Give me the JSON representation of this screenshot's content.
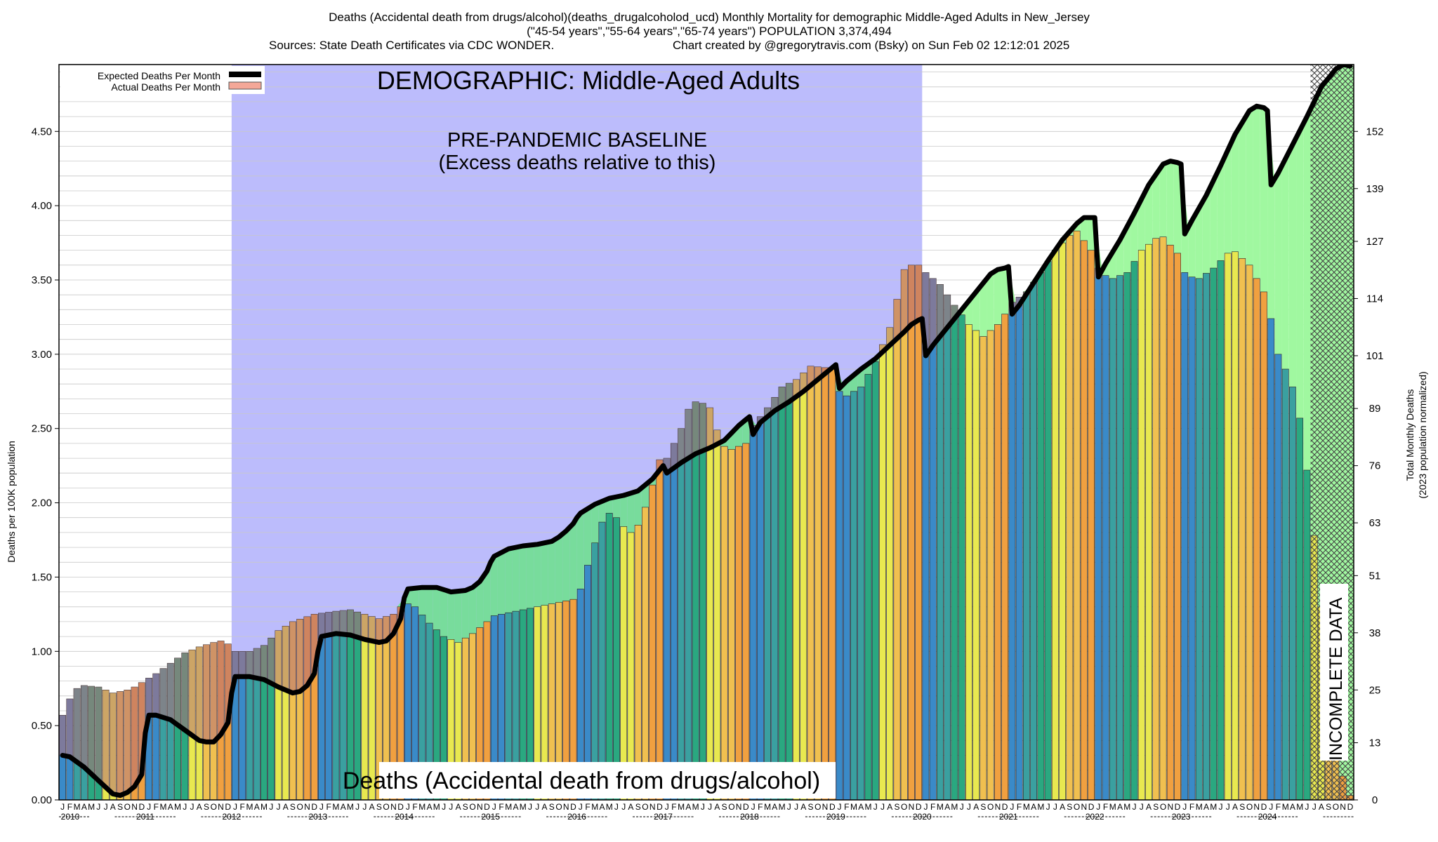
{
  "chart_data": {
    "type": "bar",
    "title_lines": [
      "Deaths (Accidental death from drugs/alcohol)(deaths_drugalcoholod_ucd) Monthly Mortality for demographic Middle-Aged Adults in New_Jersey",
      "(\"45-54 years\",\"55-64 years\",\"65-74 years\") POPULATION 3,374,494"
    ],
    "sources": "Sources: State Death Certificates via CDC WONDER.",
    "credit": "Chart created by @gregorytravis.com (Bsky) on Sun Feb 02 12:12:01 2025",
    "demographic_label": "DEMOGRAPHIC: Middle-Aged Adults",
    "baseline_label_1": "PRE-PANDEMIC BASELINE",
    "baseline_label_2": "(Excess deaths relative to this)",
    "bottom_label": "Deaths (Accidental death from drugs/alcohol)",
    "incomplete_label": "INCOMPLETE DATA",
    "ylabel_left": "Deaths per 100K population",
    "ylabel_right_1": "Total Monthly Deaths",
    "ylabel_right_2": "(2023 population normalized)",
    "legend": [
      "Expected Deaths Per Month",
      "Actual Deaths Per Month"
    ],
    "ylim": [
      0,
      4.95
    ],
    "left_ticks": [
      "0.00",
      "0.50",
      "1.00",
      "1.50",
      "2.00",
      "2.50",
      "3.00",
      "3.50",
      "4.00",
      "4.50"
    ],
    "right_ticks": [
      "0",
      "13",
      "25",
      "38",
      "51",
      "63",
      "76",
      "89",
      "101",
      "114",
      "127",
      "139",
      "152"
    ],
    "month_letters": [
      "J",
      "F",
      "M",
      "A",
      "M",
      "J",
      "J",
      "A",
      "S",
      "O",
      "N",
      "D"
    ],
    "years": [
      "2010",
      "2011",
      "2012",
      "2013",
      "2014",
      "2015",
      "2016",
      "2017",
      "2018",
      "2019",
      "2020",
      "2021",
      "2022",
      "2023",
      "2024"
    ],
    "baseline_years": [
      "2012",
      "2013",
      "2014",
      "2015",
      "2016",
      "2017",
      "2018",
      "2019"
    ],
    "incomplete_from": "2024-07",
    "actual_anchors": [
      [
        "2010-01",
        0.57
      ],
      [
        "2010-02",
        0.68
      ],
      [
        "2010-03",
        0.75
      ],
      [
        "2010-04",
        0.77
      ],
      [
        "2010-06",
        0.76
      ],
      [
        "2010-07",
        0.74
      ],
      [
        "2010-08",
        0.72
      ],
      [
        "2010-10",
        0.74
      ],
      [
        "2010-11",
        0.76
      ],
      [
        "2010-12",
        0.79
      ],
      [
        "2011-02",
        0.85
      ],
      [
        "2011-04",
        0.92
      ],
      [
        "2011-06",
        0.99
      ],
      [
        "2011-08",
        1.03
      ],
      [
        "2011-10",
        1.06
      ],
      [
        "2011-11",
        1.07
      ],
      [
        "2011-12",
        1.05
      ],
      [
        "2012-01",
        1.0
      ],
      [
        "2012-03",
        1.0
      ],
      [
        "2012-05",
        1.04
      ],
      [
        "2012-07",
        1.14
      ],
      [
        "2012-09",
        1.2
      ],
      [
        "2012-12",
        1.25
      ],
      [
        "2013-03",
        1.27
      ],
      [
        "2013-05",
        1.28
      ],
      [
        "2013-07",
        1.25
      ],
      [
        "2013-09",
        1.22
      ],
      [
        "2013-11",
        1.25
      ],
      [
        "2013-12",
        1.3
      ],
      [
        "2014-01",
        1.32
      ],
      [
        "2014-02",
        1.3
      ],
      [
        "2014-04",
        1.19
      ],
      [
        "2014-06",
        1.1
      ],
      [
        "2014-08",
        1.06
      ],
      [
        "2014-10",
        1.12
      ],
      [
        "2014-12",
        1.2
      ],
      [
        "2015-01",
        1.24
      ],
      [
        "2015-04",
        1.27
      ],
      [
        "2015-07",
        1.3
      ],
      [
        "2015-10",
        1.33
      ],
      [
        "2015-12",
        1.35
      ],
      [
        "2016-01",
        1.42
      ],
      [
        "2016-02",
        1.58
      ],
      [
        "2016-03",
        1.73
      ],
      [
        "2016-04",
        1.87
      ],
      [
        "2016-05",
        1.93
      ],
      [
        "2016-06",
        1.9
      ],
      [
        "2016-07",
        1.84
      ],
      [
        "2016-08",
        1.8
      ],
      [
        "2016-09",
        1.85
      ],
      [
        "2016-10",
        1.97
      ],
      [
        "2016-11",
        2.12
      ],
      [
        "2016-12",
        2.29
      ],
      [
        "2017-01",
        2.3
      ],
      [
        "2017-03",
        2.5
      ],
      [
        "2017-04",
        2.63
      ],
      [
        "2017-05",
        2.68
      ],
      [
        "2017-06",
        2.67
      ],
      [
        "2017-07",
        2.64
      ],
      [
        "2017-08",
        2.49
      ],
      [
        "2017-09",
        2.38
      ],
      [
        "2017-10",
        2.36
      ],
      [
        "2017-12",
        2.4
      ],
      [
        "2018-01",
        2.52
      ],
      [
        "2018-03",
        2.64
      ],
      [
        "2018-05",
        2.78
      ],
      [
        "2018-07",
        2.83
      ],
      [
        "2018-09",
        2.92
      ],
      [
        "2018-11",
        2.91
      ],
      [
        "2018-12",
        2.9
      ],
      [
        "2019-01",
        2.75
      ],
      [
        "2019-02",
        2.72
      ],
      [
        "2019-04",
        2.78
      ],
      [
        "2019-06",
        2.95
      ],
      [
        "2019-08",
        3.18
      ],
      [
        "2019-09",
        3.37
      ],
      [
        "2019-10",
        3.57
      ],
      [
        "2019-11",
        3.6
      ],
      [
        "2019-12",
        3.6
      ],
      [
        "2020-01",
        3.55
      ],
      [
        "2020-03",
        3.47
      ],
      [
        "2020-05",
        3.33
      ],
      [
        "2020-07",
        3.2
      ],
      [
        "2020-09",
        3.12
      ],
      [
        "2020-11",
        3.2
      ],
      [
        "2020-12",
        3.27
      ],
      [
        "2021-01",
        3.35
      ],
      [
        "2021-03",
        3.42
      ],
      [
        "2021-05",
        3.55
      ],
      [
        "2021-07",
        3.7
      ],
      [
        "2021-09",
        3.8
      ],
      [
        "2021-10",
        3.83
      ],
      [
        "2021-12",
        3.7
      ],
      [
        "2022-01",
        3.58
      ],
      [
        "2022-02",
        3.53
      ],
      [
        "2022-03",
        3.51
      ],
      [
        "2022-05",
        3.55
      ],
      [
        "2022-07",
        3.7
      ],
      [
        "2022-09",
        3.78
      ],
      [
        "2022-10",
        3.79
      ],
      [
        "2022-12",
        3.68
      ],
      [
        "2023-01",
        3.55
      ],
      [
        "2023-02",
        3.52
      ],
      [
        "2023-03",
        3.51
      ],
      [
        "2023-05",
        3.58
      ],
      [
        "2023-07",
        3.68
      ],
      [
        "2023-08",
        3.69
      ],
      [
        "2023-10",
        3.6
      ],
      [
        "2023-12",
        3.42
      ],
      [
        "2024-01",
        3.24
      ],
      [
        "2024-02",
        3.0
      ],
      [
        "2024-03",
        2.9
      ],
      [
        "2024-04",
        2.78
      ],
      [
        "2024-05",
        2.57
      ],
      [
        "2024-06",
        2.22
      ],
      [
        "2024-07",
        1.78
      ],
      [
        "2024-08",
        1.3
      ],
      [
        "2024-09",
        0.8
      ],
      [
        "2024-10",
        0.45
      ],
      [
        "2024-11",
        0.16
      ],
      [
        "2024-12",
        0.03
      ]
    ],
    "expected_anchors": [
      [
        "2010-01",
        0.3
      ],
      [
        "2010-02",
        0.29
      ],
      [
        "2010-04",
        0.22
      ],
      [
        "2010-06",
        0.13
      ],
      [
        "2010-08",
        0.04
      ],
      [
        "2010-09",
        0.03
      ],
      [
        "2010-10",
        0.05
      ],
      [
        "2010-11",
        0.09
      ],
      [
        "2010-12",
        0.17
      ],
      [
        "2010-12.5",
        0.45
      ],
      [
        "2011-01",
        0.57
      ],
      [
        "2011-02",
        0.57
      ],
      [
        "2011-04",
        0.54
      ],
      [
        "2011-06",
        0.47
      ],
      [
        "2011-08",
        0.4
      ],
      [
        "2011-09",
        0.39
      ],
      [
        "2011-10",
        0.39
      ],
      [
        "2011-11",
        0.44
      ],
      [
        "2011-12",
        0.52
      ],
      [
        "2011-12.5",
        0.72
      ],
      [
        "2012-01",
        0.83
      ],
      [
        "2012-03",
        0.83
      ],
      [
        "2012-05",
        0.81
      ],
      [
        "2012-07",
        0.76
      ],
      [
        "2012-09",
        0.72
      ],
      [
        "2012-10",
        0.73
      ],
      [
        "2012-11",
        0.77
      ],
      [
        "2012-12",
        0.85
      ],
      [
        "2012-12.5",
        1.0
      ],
      [
        "2013-01",
        1.1
      ],
      [
        "2013-03",
        1.12
      ],
      [
        "2013-05",
        1.11
      ],
      [
        "2013-07",
        1.08
      ],
      [
        "2013-09",
        1.06
      ],
      [
        "2013-10",
        1.07
      ],
      [
        "2013-11",
        1.12
      ],
      [
        "2013-12",
        1.22
      ],
      [
        "2013-12.5",
        1.36
      ],
      [
        "2014-01",
        1.42
      ],
      [
        "2014-03",
        1.43
      ],
      [
        "2014-05",
        1.43
      ],
      [
        "2014-07",
        1.4
      ],
      [
        "2014-09",
        1.41
      ],
      [
        "2014-10",
        1.43
      ],
      [
        "2014-11",
        1.47
      ],
      [
        "2014-12",
        1.54
      ],
      [
        "2014-12.5",
        1.6
      ],
      [
        "2015-01",
        1.64
      ],
      [
        "2015-03",
        1.69
      ],
      [
        "2015-05",
        1.71
      ],
      [
        "2015-07",
        1.72
      ],
      [
        "2015-09",
        1.74
      ],
      [
        "2015-10",
        1.77
      ],
      [
        "2015-11",
        1.81
      ],
      [
        "2015-12",
        1.86
      ],
      [
        "2015-12.5",
        1.9
      ],
      [
        "2016-01",
        1.93
      ],
      [
        "2016-03",
        1.99
      ],
      [
        "2016-05",
        2.03
      ],
      [
        "2016-07",
        2.05
      ],
      [
        "2016-09",
        2.08
      ],
      [
        "2016-10",
        2.12
      ],
      [
        "2016-11",
        2.16
      ],
      [
        "2016-12",
        2.22
      ],
      [
        "2016-12.5",
        2.25
      ],
      [
        "2017-01",
        2.2
      ],
      [
        "2017-03",
        2.27
      ],
      [
        "2017-05",
        2.33
      ],
      [
        "2017-07",
        2.37
      ],
      [
        "2017-09",
        2.42
      ],
      [
        "2017-10",
        2.47
      ],
      [
        "2017-11",
        2.52
      ],
      [
        "2017-12",
        2.56
      ],
      [
        "2017-12.5",
        2.58
      ],
      [
        "2018-01",
        2.46
      ],
      [
        "2018-02",
        2.54
      ],
      [
        "2018-04",
        2.62
      ],
      [
        "2018-06",
        2.68
      ],
      [
        "2018-08",
        2.75
      ],
      [
        "2018-10",
        2.83
      ],
      [
        "2018-11",
        2.87
      ],
      [
        "2018-12",
        2.91
      ],
      [
        "2018-12.5",
        2.93
      ],
      [
        "2019-01",
        2.77
      ],
      [
        "2019-02",
        2.82
      ],
      [
        "2019-04",
        2.9
      ],
      [
        "2019-06",
        2.97
      ],
      [
        "2019-08",
        3.06
      ],
      [
        "2019-10",
        3.15
      ],
      [
        "2019-11",
        3.2
      ],
      [
        "2019-12",
        3.23
      ],
      [
        "2019-12.5",
        3.24
      ],
      [
        "2020-01",
        2.99
      ],
      [
        "2020-02",
        3.06
      ],
      [
        "2020-04",
        3.18
      ],
      [
        "2020-06",
        3.3
      ],
      [
        "2020-08",
        3.42
      ],
      [
        "2020-10",
        3.54
      ],
      [
        "2020-11",
        3.57
      ],
      [
        "2020-12",
        3.58
      ],
      [
        "2020-12.5",
        3.59
      ],
      [
        "2021-01",
        3.27
      ],
      [
        "2021-02",
        3.33
      ],
      [
        "2021-04",
        3.48
      ],
      [
        "2021-06",
        3.63
      ],
      [
        "2021-08",
        3.77
      ],
      [
        "2021-10",
        3.88
      ],
      [
        "2021-11",
        3.92
      ],
      [
        "2021-12",
        3.92
      ],
      [
        "2021-12.5",
        3.92
      ],
      [
        "2022-01",
        3.52
      ],
      [
        "2022-02",
        3.61
      ],
      [
        "2022-04",
        3.77
      ],
      [
        "2022-06",
        3.95
      ],
      [
        "2022-08",
        4.14
      ],
      [
        "2022-10",
        4.28
      ],
      [
        "2022-11",
        4.3
      ],
      [
        "2022-12",
        4.29
      ],
      [
        "2022-12.5",
        4.28
      ],
      [
        "2023-01",
        3.81
      ],
      [
        "2023-02",
        3.9
      ],
      [
        "2023-04",
        4.07
      ],
      [
        "2023-06",
        4.27
      ],
      [
        "2023-08",
        4.48
      ],
      [
        "2023-10",
        4.64
      ],
      [
        "2023-11",
        4.67
      ],
      [
        "2023-12",
        4.66
      ],
      [
        "2023-12.5",
        4.64
      ],
      [
        "2024-01",
        4.14
      ],
      [
        "2024-02",
        4.22
      ],
      [
        "2024-04",
        4.41
      ],
      [
        "2024-06",
        4.6
      ],
      [
        "2024-08",
        4.8
      ],
      [
        "2024-10",
        4.92
      ],
      [
        "2024-11",
        4.95
      ],
      [
        "2024-12",
        4.94
      ]
    ]
  },
  "colors": {
    "baseline_region": "#bcbcfc",
    "excess_fill": "#a0f8a0",
    "baseline_excess_fill": "#78dc9c",
    "expected_line": "#000000",
    "deficit_overlay": "#b46e78",
    "incomplete_hatch": "#444444",
    "grid": "#c8c8c8",
    "season_colors": [
      "#3a8ac8",
      "#3aa0a0",
      "#2aa880",
      "#e8e850",
      "#f0c050",
      "#f0a040"
    ]
  }
}
